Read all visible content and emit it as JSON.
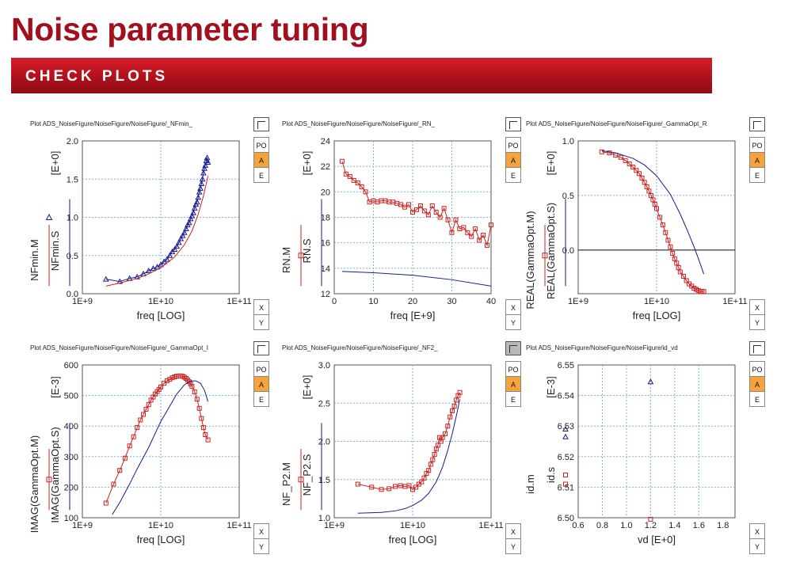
{
  "header": {
    "title": "Noise parameter tuning",
    "banner": "CHECK PLOTS"
  },
  "side_buttons": {
    "po": "PO",
    "a": "A",
    "e": "E",
    "x": "X",
    "y": "Y"
  },
  "colors": {
    "measured": "#cc2222",
    "simulated": "#1a1a8f",
    "grid": "#7fb2d8",
    "accent": "#f7a33c"
  },
  "chart_data": [
    {
      "id": "p1",
      "type": "line",
      "title": "Plot ADS_NoiseFigure/NoiseFigure/NoiseFigure/_NFmin_",
      "xlabel": "freq  [LOG]",
      "xscale": "log",
      "xlim": [
        1000000000.0,
        100000000000.0
      ],
      "xticks": [
        1000000000.0,
        10000000000.0,
        100000000000.0
      ],
      "xtick_labels": [
        "1E+9",
        "1E+10",
        "1E+11"
      ],
      "ylim": [
        0.0,
        2.0
      ],
      "yticks": [
        0,
        0.5,
        1.0,
        1.5,
        2.0
      ],
      "ytick_labels": [
        "0.0",
        "0.5",
        "1.0",
        "1.5",
        "2.0"
      ],
      "ylabel_top": "[E+0]",
      "ylabel_m": "NFmin.M",
      "ylabel_s": "NFmin.S",
      "series": [
        {
          "color": "#1a1a8f",
          "marker": "triangle",
          "x": [
            2000000000.0,
            3000000000.0,
            4000000000.0,
            5000000000.0,
            6000000000.0,
            7000000000.0,
            8000000000.0,
            9000000000.0,
            10000000000.0,
            11000000000.0,
            12000000000.0,
            13000000000.0,
            14000000000.0,
            15000000000.0,
            16000000000.0,
            17000000000.0,
            18000000000.0,
            19000000000.0,
            20000000000.0,
            21000000000.0,
            22000000000.0,
            23000000000.0,
            24000000000.0,
            25000000000.0,
            26000000000.0,
            27000000000.0,
            28000000000.0,
            29000000000.0,
            30000000000.0,
            31000000000.0,
            32000000000.0,
            33000000000.0,
            34000000000.0,
            35000000000.0,
            36000000000.0,
            37000000000.0,
            38000000000.0,
            39000000000.0,
            40000000000.0
          ],
          "y": [
            0.19,
            0.16,
            0.2,
            0.22,
            0.26,
            0.3,
            0.33,
            0.35,
            0.38,
            0.42,
            0.45,
            0.5,
            0.55,
            0.58,
            0.62,
            0.67,
            0.72,
            0.76,
            0.8,
            0.85,
            0.9,
            0.93,
            0.98,
            1.02,
            1.06,
            1.12,
            1.17,
            1.2,
            1.26,
            1.33,
            1.38,
            1.44,
            1.5,
            1.58,
            1.64,
            1.68,
            1.74,
            1.78,
            1.72
          ]
        },
        {
          "color": "#cc2222",
          "marker": "none",
          "x": [
            2000000000.0,
            3000000000.0,
            5000000000.0,
            7000000000.0,
            10000000000.0,
            15000000000.0,
            20000000000.0,
            25000000000.0,
            30000000000.0,
            35000000000.0,
            40000000000.0
          ],
          "y": [
            0.1,
            0.14,
            0.2,
            0.26,
            0.34,
            0.48,
            0.64,
            0.82,
            1.04,
            1.28,
            1.54
          ]
        }
      ]
    },
    {
      "id": "p2",
      "type": "line",
      "title": "Plot ADS_NoiseFigure/NoiseFigure/NoiseFigure/_RN_",
      "xlabel": "freq  [E+9]",
      "xscale": "linear",
      "xlim": [
        0,
        40
      ],
      "xticks": [
        0,
        10,
        20,
        30,
        40
      ],
      "xtick_labels": [
        "0",
        "10",
        "20",
        "30",
        "40"
      ],
      "ylim": [
        12,
        24
      ],
      "yticks": [
        12,
        14,
        16,
        18,
        20,
        22,
        24
      ],
      "ytick_labels": [
        "12",
        "14",
        "16",
        "18",
        "20",
        "22",
        "24"
      ],
      "ylabel_top": "[E+0]",
      "ylabel_m": "RN.M",
      "ylabel_s": "RN.S",
      "series": [
        {
          "color": "#cc2222",
          "marker": "square",
          "x": [
            2,
            3,
            4,
            5,
            6,
            7,
            8,
            9,
            10,
            11,
            12,
            13,
            14,
            15,
            16,
            17,
            18,
            19,
            20,
            21,
            22,
            23,
            24,
            25,
            26,
            27,
            28,
            29,
            30,
            31,
            32,
            33,
            34,
            35,
            36,
            37,
            38,
            39,
            40
          ],
          "y": [
            22.4,
            21.4,
            21.2,
            20.9,
            20.7,
            20.4,
            20.0,
            19.2,
            19.3,
            19.2,
            19.3,
            19.3,
            19.2,
            19.2,
            19.1,
            19.0,
            18.8,
            19.0,
            18.4,
            18.6,
            18.9,
            18.5,
            18.2,
            18.9,
            18.4,
            18.0,
            18.7,
            17.8,
            16.8,
            17.8,
            17.1,
            17.2,
            16.8,
            16.5,
            17.1,
            16.2,
            16.6,
            15.8,
            17.4
          ]
        },
        {
          "color": "#1a1a8f",
          "marker": "none",
          "x": [
            2,
            10,
            20,
            30,
            40
          ],
          "y": [
            13.75,
            13.65,
            13.45,
            13.1,
            12.6
          ]
        }
      ]
    },
    {
      "id": "p3",
      "type": "line",
      "title": "Plot ADS_NoiseFigure/NoiseFigure/NoiseFigure/_GammaOpt_R",
      "xlabel": "freq  [LOG]",
      "xscale": "log",
      "xlim": [
        1000000000.0,
        100000000000.0
      ],
      "xticks": [
        1000000000.0,
        10000000000.0,
        100000000000.0
      ],
      "xtick_labels": [
        "1E+9",
        "1E+10",
        "1E+11"
      ],
      "ylim": [
        -0.4,
        1.0
      ],
      "yticks": [
        0,
        0.5,
        1.0
      ],
      "ytick_labels": [
        "0.0",
        "0.5",
        "1.0"
      ],
      "ylabel_top": "[E+0]",
      "ylabel_m": "REAL(GammaOpt.M)",
      "ylabel_s": "REAL(GammaOpt.S)",
      "zero_line": true,
      "series": [
        {
          "color": "#cc2222",
          "marker": "square",
          "x": [
            2000000000.0,
            2500000000.0,
            3000000000.0,
            3500000000.0,
            4000000000.0,
            4500000000.0,
            5000000000.0,
            5500000000.0,
            6000000000.0,
            6500000000.0,
            7000000000.0,
            7500000000.0,
            8000000000.0,
            8500000000.0,
            9000000000.0,
            9500000000.0,
            10000000000.0,
            11000000000.0,
            12000000000.0,
            13000000000.0,
            14000000000.0,
            15000000000.0,
            16000000000.0,
            17000000000.0,
            18000000000.0,
            19000000000.0,
            20000000000.0,
            22000000000.0,
            24000000000.0,
            26000000000.0,
            28000000000.0,
            30000000000.0,
            32000000000.0,
            34000000000.0,
            36000000000.0,
            38000000000.0,
            40000000000.0
          ],
          "y": [
            0.9,
            0.89,
            0.87,
            0.85,
            0.82,
            0.79,
            0.76,
            0.73,
            0.7,
            0.66,
            0.62,
            0.58,
            0.54,
            0.5,
            0.46,
            0.42,
            0.38,
            0.3,
            0.23,
            0.16,
            0.09,
            0.03,
            -0.03,
            -0.08,
            -0.12,
            -0.16,
            -0.2,
            -0.24,
            -0.28,
            -0.31,
            -0.33,
            -0.35,
            -0.36,
            -0.37,
            -0.38,
            -0.38,
            -0.38
          ]
        },
        {
          "color": "#1a1a8f",
          "marker": "none",
          "x": [
            2000000000.0,
            3000000000.0,
            5000000000.0,
            7000000000.0,
            10000000000.0,
            15000000000.0,
            20000000000.0,
            25000000000.0,
            30000000000.0,
            35000000000.0,
            40000000000.0
          ],
          "y": [
            0.91,
            0.89,
            0.84,
            0.78,
            0.68,
            0.51,
            0.33,
            0.17,
            0.03,
            -0.1,
            -0.22
          ]
        }
      ]
    },
    {
      "id": "p4",
      "type": "line",
      "title": "Plot ADS_NoiseFigure/NoiseFigure/NoiseFigure/_GammaOpt_I",
      "xlabel": "freq  [LOG]",
      "xscale": "log",
      "xlim": [
        1000000000.0,
        100000000000.0
      ],
      "xticks": [
        1000000000.0,
        10000000000.0,
        100000000000.0
      ],
      "xtick_labels": [
        "1E+9",
        "1E+10",
        "1E+11"
      ],
      "ylim": [
        100,
        600
      ],
      "yticks": [
        100,
        200,
        300,
        400,
        500,
        600
      ],
      "ytick_labels": [
        "100",
        "200",
        "300",
        "400",
        "500",
        "600"
      ],
      "ylabel_top": "[E-3]",
      "ylabel_m": "IMAG(GammaOpt.M)",
      "ylabel_s": "IMAG(GammaOpt.S)",
      "series": [
        {
          "color": "#cc2222",
          "marker": "square",
          "x": [
            2000000000.0,
            2500000000.0,
            3000000000.0,
            3500000000.0,
            4000000000.0,
            4500000000.0,
            5000000000.0,
            5500000000.0,
            6000000000.0,
            6500000000.0,
            7000000000.0,
            7500000000.0,
            8000000000.0,
            8500000000.0,
            9000000000.0,
            9500000000.0,
            10000000000.0,
            11000000000.0,
            12000000000.0,
            13000000000.0,
            14000000000.0,
            15000000000.0,
            16000000000.0,
            17000000000.0,
            18000000000.0,
            19000000000.0,
            20000000000.0,
            21000000000.0,
            22000000000.0,
            23000000000.0,
            24000000000.0,
            25000000000.0,
            27000000000.0,
            29000000000.0,
            31000000000.0,
            33000000000.0,
            35000000000.0,
            37000000000.0,
            40000000000.0
          ],
          "y": [
            148,
            210,
            255,
            295,
            335,
            365,
            395,
            420,
            438,
            455,
            470,
            485,
            495,
            505,
            513,
            520,
            528,
            540,
            548,
            553,
            558,
            561,
            563,
            564,
            564,
            563,
            560,
            556,
            551,
            545,
            538,
            530,
            512,
            488,
            458,
            425,
            395,
            372,
            355
          ]
        },
        {
          "color": "#1a1a8f",
          "marker": "none",
          "x": [
            2400000000.0,
            3000000000.0,
            4000000000.0,
            5000000000.0,
            7000000000.0,
            10000000000.0,
            13000000000.0,
            16000000000.0,
            20000000000.0,
            24000000000.0,
            28000000000.0,
            32000000000.0,
            36000000000.0,
            40000000000.0
          ],
          "y": [
            110,
            150,
            210,
            260,
            330,
            415,
            465,
            505,
            535,
            548,
            548,
            540,
            518,
            480
          ]
        }
      ]
    },
    {
      "id": "p5",
      "type": "line",
      "title": "Plot ADS_NoiseFigure/NoiseFigure/NoiseFigure/_NF2_",
      "xlabel": "freq  [LOG]",
      "xscale": "log",
      "xlim": [
        1000000000.0,
        100000000000.0
      ],
      "xticks": [
        1000000000.0,
        10000000000.0,
        100000000000.0
      ],
      "xtick_labels": [
        "1E+9",
        "1E+10",
        "1E+11"
      ],
      "ylim": [
        1.0,
        3.0
      ],
      "yticks": [
        1.0,
        1.5,
        2.0,
        2.5,
        3.0
      ],
      "ytick_labels": [
        "1.0",
        "1.5",
        "2.0",
        "2.5",
        "3.0"
      ],
      "ylabel_top": "[E+0]",
      "ylabel_m": "NF_P2.M",
      "ylabel_s": "NF_P2.S",
      "series": [
        {
          "color": "#cc2222",
          "marker": "square",
          "x": [
            2000000000.0,
            3000000000.0,
            4000000000.0,
            5000000000.0,
            6000000000.0,
            7000000000.0,
            8000000000.0,
            9000000000.0,
            10000000000.0,
            11000000000.0,
            12000000000.0,
            13000000000.0,
            14000000000.0,
            15000000000.0,
            16000000000.0,
            17000000000.0,
            18000000000.0,
            19000000000.0,
            20000000000.0,
            21000000000.0,
            22000000000.0,
            23000000000.0,
            24000000000.0,
            26000000000.0,
            28000000000.0,
            30000000000.0,
            32000000000.0,
            34000000000.0,
            36000000000.0,
            38000000000.0,
            40000000000.0
          ],
          "y": [
            1.44,
            1.4,
            1.37,
            1.38,
            1.41,
            1.42,
            1.41,
            1.42,
            1.37,
            1.4,
            1.44,
            1.47,
            1.52,
            1.58,
            1.62,
            1.7,
            1.76,
            1.83,
            1.9,
            1.95,
            2.05,
            2.0,
            2.05,
            2.1,
            2.2,
            2.32,
            2.4,
            2.46,
            2.54,
            2.6,
            2.64
          ]
        },
        {
          "color": "#1a1a8f",
          "marker": "none",
          "x": [
            2000000000.0,
            4000000000.0,
            6000000000.0,
            8000000000.0,
            10000000000.0,
            13000000000.0,
            16000000000.0,
            20000000000.0,
            24000000000.0,
            28000000000.0,
            32000000000.0,
            36000000000.0,
            40000000000.0
          ],
          "y": [
            1.06,
            1.07,
            1.09,
            1.12,
            1.16,
            1.23,
            1.32,
            1.47,
            1.66,
            1.88,
            2.1,
            2.33,
            2.55
          ]
        }
      ]
    },
    {
      "id": "p6",
      "type": "scatter",
      "title": "Plot ADS_NoiseFigure/NoiseFigure/NoiseFigure/id_vd",
      "xlabel": "vd  [E+0]",
      "xscale": "linear",
      "xlim": [
        0.6,
        1.9
      ],
      "xticks": [
        0.6,
        0.8,
        1.0,
        1.2,
        1.4,
        1.6,
        1.8
      ],
      "xtick_labels": [
        "0.6",
        "0.8",
        "1.0",
        "1.2",
        "1.4",
        "1.6",
        "1.8"
      ],
      "ylim": [
        6.5,
        6.55
      ],
      "yticks": [
        6.5,
        6.51,
        6.52,
        6.53,
        6.54,
        6.55
      ],
      "ytick_labels": [
        "6.50",
        "6.51",
        "6.52",
        "6.53",
        "6.54",
        "6.55"
      ],
      "ylabel_top": "[E-3]",
      "ylabel_m": "id.m",
      "ylabel_s": "id.s",
      "series": [
        {
          "color": "#1a1a8f",
          "marker": "triangle",
          "x": [
            1.2
          ],
          "y": [
            6.5445
          ]
        },
        {
          "color": "#cc2222",
          "marker": "square",
          "x": [
            1.2
          ],
          "y": [
            6.4995
          ]
        }
      ]
    }
  ]
}
